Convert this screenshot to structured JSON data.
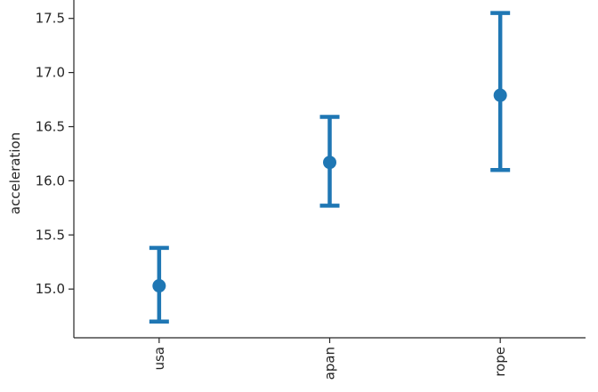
{
  "chart_data": {
    "type": "pointplot",
    "categories": [
      "usa",
      "japan",
      "europe"
    ],
    "category_labels": [
      "usa",
      "apan",
      "rope"
    ],
    "values": [
      15.03,
      16.17,
      16.79
    ],
    "ci_low": [
      14.7,
      15.77,
      16.1
    ],
    "ci_high": [
      15.38,
      16.59,
      17.55
    ],
    "xlabel": "",
    "ylabel": "acceleration",
    "ylim": [
      14.55,
      17.67
    ],
    "yticks": [
      15.0,
      15.5,
      16.0,
      16.5,
      17.0,
      17.5
    ],
    "ytick_labels": [
      "15.0",
      "15.5",
      "16.0",
      "16.5",
      "17.0",
      "17.5"
    ],
    "color": "#1f77b4",
    "grid": false
  }
}
